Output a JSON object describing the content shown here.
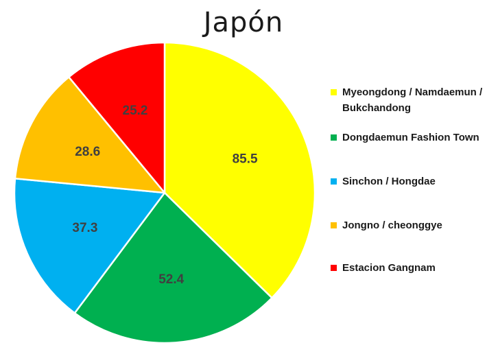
{
  "chart_data": {
    "type": "pie",
    "title": "Japón",
    "categories": [
      "Myeongdong / Namdaemun / Bukchandong",
      "Dongdaemun Fashion Town",
      "Sinchon / Hongdae",
      "Jongno / cheonggye",
      "Estacion Gangnam"
    ],
    "values": [
      85.5,
      52.4,
      37.3,
      28.6,
      25.2
    ],
    "value_labels": [
      "85.5",
      "52.4",
      "37.3",
      "28.6",
      "25.2"
    ],
    "colors": [
      "#FFFF00",
      "#00B050",
      "#00B0F0",
      "#FFC000",
      "#FF0000"
    ],
    "legend_position": "right"
  }
}
